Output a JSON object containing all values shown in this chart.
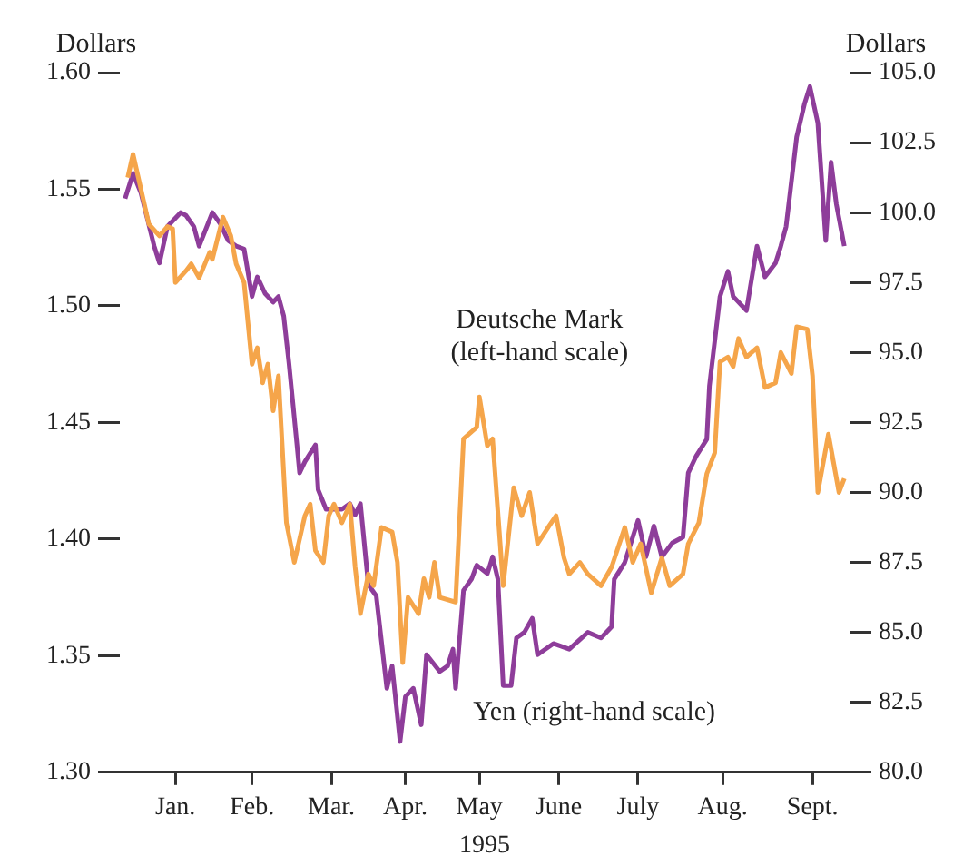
{
  "chart_data": {
    "type": "line",
    "xlabel": "1995",
    "ylabel": "Dollars",
    "y2label": "Dollars",
    "xlim": [
      "1995-01-01",
      "1995-10-04"
    ],
    "xticks": [
      {
        "value": "1995-01-22",
        "label": "Jan."
      },
      {
        "value": "1995-02-20",
        "label": "Feb."
      },
      {
        "value": "1995-03-22",
        "label": "Mar."
      },
      {
        "value": "1995-04-19",
        "label": "Apr."
      },
      {
        "value": "1995-05-17",
        "label": "May"
      },
      {
        "value": "1995-06-16",
        "label": "June"
      },
      {
        "value": "1995-07-16",
        "label": "July"
      },
      {
        "value": "1995-08-17",
        "label": "Aug."
      },
      {
        "value": "1995-09-20",
        "label": "Sept."
      }
    ],
    "ylim": [
      1.3,
      1.6
    ],
    "yticks": [
      {
        "value": 1.3,
        "label": "1.30"
      },
      {
        "value": 1.35,
        "label": "1.35"
      },
      {
        "value": 1.4,
        "label": "1.40"
      },
      {
        "value": 1.45,
        "label": "1.45"
      },
      {
        "value": 1.5,
        "label": "1.50"
      },
      {
        "value": 1.55,
        "label": "1.55"
      },
      {
        "value": 1.6,
        "label": "1.60"
      }
    ],
    "y2lim": [
      80,
      105
    ],
    "y2ticks": [
      {
        "value": 80,
        "label": "80.0"
      },
      {
        "value": 82.5,
        "label": "82.5"
      },
      {
        "value": 85,
        "label": "85.0"
      },
      {
        "value": 87.5,
        "label": "87.5"
      },
      {
        "value": 90,
        "label": "90.0"
      },
      {
        "value": 92.5,
        "label": "92.5"
      },
      {
        "value": 95,
        "label": "95.0"
      },
      {
        "value": 97.5,
        "label": "97.5"
      },
      {
        "value": 100,
        "label": "100.0"
      },
      {
        "value": 102.5,
        "label": "102.5"
      },
      {
        "value": 105,
        "label": "105.0"
      }
    ],
    "grid": false,
    "series": [
      {
        "name": "Deutsche Mark (left-hand scale)",
        "color": "#f5a54a",
        "axis": "y",
        "x": [
          "1995-01-04",
          "1995-01-06",
          "1995-01-08",
          "1995-01-12",
          "1995-01-16",
          "1995-01-19",
          "1995-01-21",
          "1995-01-22",
          "1995-01-26",
          "1995-01-28",
          "1995-01-31",
          "1995-02-04",
          "1995-02-05",
          "1995-02-09",
          "1995-02-12",
          "1995-02-14",
          "1995-02-17",
          "1995-02-20",
          "1995-02-22",
          "1995-02-24",
          "1995-02-26",
          "1995-02-28",
          "1995-03-02",
          "1995-03-05",
          "1995-03-08",
          "1995-03-12",
          "1995-03-14",
          "1995-03-16",
          "1995-03-19",
          "1995-03-21",
          "1995-03-23",
          "1995-03-26",
          "1995-03-29",
          "1995-03-31",
          "1995-04-02",
          "1995-04-05",
          "1995-04-07",
          "1995-04-10",
          "1995-04-14",
          "1995-04-16",
          "1995-04-18",
          "1995-04-20",
          "1995-04-24",
          "1995-04-26",
          "1995-04-28",
          "1995-04-30",
          "1995-05-02",
          "1995-05-08",
          "1995-05-11",
          "1995-05-16",
          "1995-05-17",
          "1995-05-20",
          "1995-05-22",
          "1995-05-26",
          "1995-05-30",
          "1995-06-02",
          "1995-06-05",
          "1995-06-08",
          "1995-06-12",
          "1995-06-15",
          "1995-06-18",
          "1995-06-20",
          "1995-06-24",
          "1995-06-27",
          "1995-07-02",
          "1995-07-06",
          "1995-07-11",
          "1995-07-14",
          "1995-07-17",
          "1995-07-21",
          "1995-07-25",
          "1995-07-28",
          "1995-08-02",
          "1995-08-04",
          "1995-08-08",
          "1995-08-11",
          "1995-08-14",
          "1995-08-16",
          "1995-08-19",
          "1995-08-21",
          "1995-08-23",
          "1995-08-26",
          "1995-08-30",
          "1995-09-02",
          "1995-09-06",
          "1995-09-08",
          "1995-09-12",
          "1995-09-14",
          "1995-09-18",
          "1995-09-20",
          "1995-09-22",
          "1995-09-26",
          "1995-09-30",
          "1995-10-02"
        ],
        "values": [
          1.555,
          1.565,
          1.555,
          1.535,
          1.53,
          1.534,
          1.533,
          1.51,
          1.515,
          1.518,
          1.512,
          1.523,
          1.52,
          1.538,
          1.53,
          1.518,
          1.51,
          1.475,
          1.482,
          1.467,
          1.475,
          1.455,
          1.47,
          1.407,
          1.39,
          1.41,
          1.415,
          1.395,
          1.39,
          1.41,
          1.415,
          1.407,
          1.415,
          1.388,
          1.368,
          1.385,
          1.38,
          1.405,
          1.403,
          1.39,
          1.347,
          1.375,
          1.368,
          1.383,
          1.375,
          1.39,
          1.375,
          1.373,
          1.443,
          1.448,
          1.461,
          1.44,
          1.443,
          1.38,
          1.422,
          1.41,
          1.42,
          1.398,
          1.405,
          1.41,
          1.392,
          1.385,
          1.39,
          1.385,
          1.38,
          1.388,
          1.405,
          1.39,
          1.398,
          1.377,
          1.392,
          1.38,
          1.385,
          1.398,
          1.407,
          1.428,
          1.437,
          1.476,
          1.478,
          1.474,
          1.486,
          1.478,
          1.482,
          1.465,
          1.467,
          1.48,
          1.471,
          1.491,
          1.49,
          1.47,
          1.42,
          1.445,
          1.42,
          1.426
        ]
      },
      {
        "name": "Yen (right-hand scale)",
        "color": "#8e3d9a",
        "axis": "y2",
        "x": [
          "1995-01-03",
          "1995-01-06",
          "1995-01-09",
          "1995-01-14",
          "1995-01-16",
          "1995-01-19",
          "1995-01-24",
          "1995-01-26",
          "1995-01-29",
          "1995-01-31",
          "1995-02-05",
          "1995-02-08",
          "1995-02-11",
          "1995-02-14",
          "1995-02-17",
          "1995-02-20",
          "1995-02-22",
          "1995-02-25",
          "1995-02-28",
          "1995-03-02",
          "1995-03-04",
          "1995-03-06",
          "1995-03-09",
          "1995-03-10",
          "1995-03-12",
          "1995-03-16",
          "1995-03-17",
          "1995-03-20",
          "1995-03-26",
          "1995-03-29",
          "1995-03-31",
          "1995-04-02",
          "1995-04-05",
          "1995-04-08",
          "1995-04-12",
          "1995-04-14",
          "1995-04-17",
          "1995-04-19",
          "1995-04-22",
          "1995-04-25",
          "1995-04-27",
          "1995-05-02",
          "1995-05-05",
          "1995-05-07",
          "1995-05-08",
          "1995-05-11",
          "1995-05-14",
          "1995-05-16",
          "1995-05-20",
          "1995-05-22",
          "1995-05-24",
          "1995-05-26",
          "1995-05-29",
          "1995-05-31",
          "1995-06-03",
          "1995-06-06",
          "1995-06-08",
          "1995-06-14",
          "1995-06-20",
          "1995-06-27",
          "1995-07-02",
          "1995-07-06",
          "1995-07-07",
          "1995-07-11",
          "1995-07-16",
          "1995-07-19",
          "1995-07-22",
          "1995-07-25",
          "1995-07-29",
          "1995-08-02",
          "1995-08-04",
          "1995-08-07",
          "1995-08-11",
          "1995-08-12",
          "1995-08-16",
          "1995-08-19",
          "1995-08-21",
          "1995-08-26",
          "1995-08-30",
          "1995-09-02",
          "1995-09-06",
          "1995-09-08",
          "1995-09-10",
          "1995-09-14",
          "1995-09-17",
          "1995-09-19",
          "1995-09-22",
          "1995-09-25",
          "1995-09-27",
          "1995-09-29",
          "1995-10-02"
        ],
        "values": [
          100.5,
          101.4,
          100.7,
          98.8,
          98.2,
          99.5,
          100.0,
          99.9,
          99.5,
          98.8,
          100.0,
          99.6,
          99.0,
          98.8,
          98.7,
          97.0,
          97.7,
          97.1,
          96.8,
          97.0,
          96.3,
          94.6,
          91.7,
          90.7,
          91.1,
          91.7,
          90.1,
          89.4,
          89.4,
          89.6,
          89.2,
          89.6,
          86.7,
          86.3,
          83.0,
          83.8,
          81.1,
          82.7,
          83.0,
          81.7,
          84.2,
          83.6,
          83.8,
          84.4,
          83.0,
          86.5,
          86.9,
          87.4,
          87.1,
          87.7,
          86.9,
          83.1,
          83.1,
          84.8,
          85.0,
          85.5,
          84.2,
          84.6,
          84.4,
          85.0,
          84.8,
          85.2,
          86.9,
          87.5,
          89.0,
          87.7,
          88.8,
          87.7,
          88.2,
          88.4,
          90.7,
          91.3,
          91.9,
          93.8,
          97.0,
          97.9,
          97.0,
          96.5,
          98.8,
          97.7,
          98.2,
          98.8,
          99.5,
          102.7,
          103.9,
          104.5,
          103.2,
          99.0,
          101.8,
          100.3,
          98.8
        ]
      }
    ]
  }
}
